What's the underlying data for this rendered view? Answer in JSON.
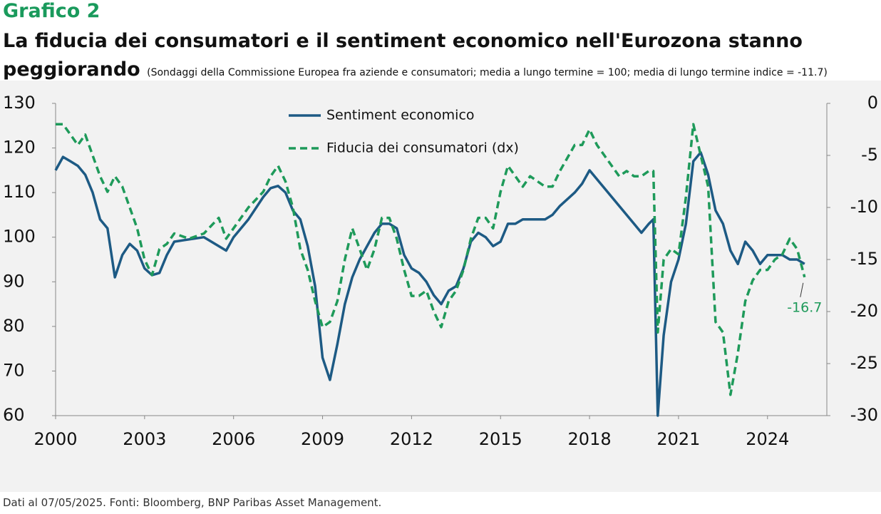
{
  "chart_data": {
    "type": "line",
    "kicker": "Grafico 2",
    "title": "La fiducia dei consumatori e il sentiment economico nell'Eurozona stanno peggiorando",
    "subtitle": "(Sondaggi della Commissione Europea fra aziende e consumatori; media a lungo termine = 100; media di lungo termine indice =  -11.7)",
    "footer": "Dati al 07/05/2025. Fonti: Bloomberg, BNP Paribas Asset Management.",
    "x": [
      2000,
      2000.25,
      2000.5,
      2000.75,
      2001,
      2001.25,
      2001.5,
      2001.75,
      2002,
      2002.25,
      2002.5,
      2002.75,
      2003,
      2003.25,
      2003.5,
      2003.75,
      2004,
      2004.5,
      2005,
      2005.5,
      2005.75,
      2006,
      2006.5,
      2007,
      2007.25,
      2007.5,
      2007.75,
      2008,
      2008.25,
      2008.5,
      2008.75,
      2009,
      2009.25,
      2009.5,
      2009.75,
      2010,
      2010.25,
      2010.5,
      2010.75,
      2011,
      2011.25,
      2011.5,
      2011.75,
      2012,
      2012.25,
      2012.5,
      2012.75,
      2013,
      2013.25,
      2013.5,
      2013.75,
      2014,
      2014.25,
      2014.5,
      2014.75,
      2015,
      2015.25,
      2015.5,
      2015.75,
      2016,
      2016.5,
      2016.75,
      2017,
      2017.5,
      2017.75,
      2018,
      2018.25,
      2018.5,
      2018.75,
      2019,
      2019.25,
      2019.5,
      2019.75,
      2020,
      2020.15,
      2020.3,
      2020.5,
      2020.75,
      2021,
      2021.25,
      2021.5,
      2021.75,
      2022,
      2022.25,
      2022.5,
      2022.75,
      2023,
      2023.25,
      2023.5,
      2023.75,
      2024,
      2024.25,
      2024.5,
      2024.75,
      2025,
      2025.25
    ],
    "series": [
      {
        "name": "Sentiment economico",
        "color": "#1d5a84",
        "dashed": false,
        "values": [
          115,
          118,
          117,
          116,
          114,
          110,
          104,
          102,
          91,
          96,
          98.5,
          97,
          93,
          91.5,
          92,
          96,
          99,
          99.5,
          100,
          98,
          97,
          100,
          104,
          109,
          111,
          111.5,
          110,
          106,
          104,
          98,
          89,
          73,
          68,
          76,
          85,
          91,
          95,
          98,
          101,
          103,
          103,
          102,
          96,
          93,
          92,
          90,
          87,
          85,
          88,
          89,
          93,
          99,
          101,
          100,
          98,
          99,
          103,
          103,
          104,
          104,
          104,
          105,
          107,
          110,
          112,
          115,
          113,
          111,
          109,
          107,
          105,
          103,
          101,
          103,
          104,
          60,
          78,
          90,
          95,
          103,
          117,
          119,
          114,
          106,
          103,
          97,
          94,
          99,
          97,
          94,
          96,
          96,
          96,
          95,
          95,
          94
        ]
      },
      {
        "name": "Fiducia dei consumatori (dx)",
        "color": "#1e9a5a",
        "dashed": true,
        "axis": "y2",
        "values": [
          -2,
          -2,
          -3,
          -4,
          -3,
          -5,
          -7,
          -8.5,
          -7,
          -8,
          -10,
          -12,
          -15,
          -16.5,
          -14,
          -13.5,
          -12.5,
          -13,
          -12.5,
          -11,
          -13,
          -12,
          -10,
          -8.5,
          -7,
          -6,
          -7.5,
          -10,
          -14,
          -16,
          -19,
          -21.5,
          -21,
          -19,
          -15,
          -12,
          -14,
          -16,
          -14,
          -11,
          -11,
          -13,
          -16,
          -18.5,
          -18.5,
          -18,
          -20,
          -21.5,
          -19,
          -18,
          -16,
          -13,
          -11,
          -11,
          -12,
          -8.5,
          -6,
          -7,
          -8,
          -7,
          -8,
          -8,
          -6.5,
          -4,
          -4,
          -2.5,
          -4,
          -5,
          -6,
          -7,
          -6.5,
          -7,
          -7,
          -6.5,
          -6.5,
          -22,
          -15,
          -14,
          -14.5,
          -9,
          -2,
          -5,
          -8,
          -21,
          -22,
          -28,
          -24,
          -19,
          -17,
          -16,
          -16,
          -15,
          -14.5,
          -13,
          -14,
          -16.7
        ]
      }
    ],
    "annotation": "-16.7",
    "xlim": [
      2000,
      2026
    ],
    "xticks": [
      2000,
      2003,
      2006,
      2009,
      2012,
      2015,
      2018,
      2021,
      2024
    ],
    "ylim": [
      60,
      130
    ],
    "yticks": [
      60,
      70,
      80,
      90,
      100,
      110,
      120,
      130
    ],
    "y2lim": [
      -30,
      0
    ],
    "y2ticks": [
      -30,
      -25,
      -20,
      -15,
      -10,
      -5,
      0
    ],
    "grid": false
  }
}
